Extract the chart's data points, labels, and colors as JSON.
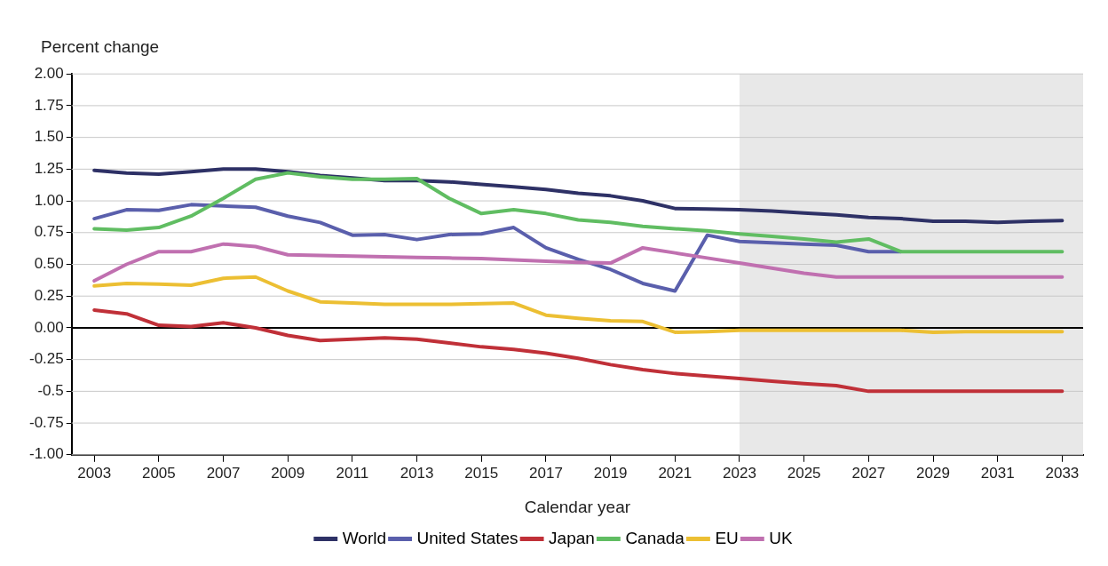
{
  "chart_data": {
    "type": "line",
    "ylabel": "Percent change",
    "xlabel": "Calendar year",
    "x": [
      2003,
      2004,
      2005,
      2006,
      2007,
      2008,
      2009,
      2010,
      2011,
      2012,
      2013,
      2014,
      2015,
      2016,
      2017,
      2018,
      2019,
      2020,
      2021,
      2022,
      2023,
      2024,
      2025,
      2026,
      2027,
      2028,
      2029,
      2030,
      2031,
      2032,
      2033
    ],
    "series": [
      {
        "name": "World",
        "color": "#2e3166",
        "values": [
          1.24,
          1.22,
          1.21,
          1.23,
          1.25,
          1.25,
          1.23,
          1.2,
          1.18,
          1.16,
          1.16,
          1.15,
          1.13,
          1.11,
          1.09,
          1.06,
          1.04,
          1.0,
          0.94,
          0.935,
          0.93,
          0.92,
          0.905,
          0.89,
          0.87,
          0.86,
          0.84,
          0.84,
          0.83,
          0.84,
          0.845
        ]
      },
      {
        "name": "United States",
        "color": "#5a5fac",
        "values": [
          0.86,
          0.93,
          0.925,
          0.97,
          0.96,
          0.95,
          0.88,
          0.83,
          0.73,
          0.735,
          0.695,
          0.735,
          0.74,
          0.79,
          0.63,
          0.54,
          0.46,
          0.35,
          0.29,
          0.73,
          0.68,
          0.67,
          0.66,
          0.65,
          0.6,
          0.6,
          null,
          null,
          null,
          null,
          null
        ]
      },
      {
        "name": "Japan",
        "color": "#c03038",
        "values": [
          0.14,
          0.11,
          0.02,
          0.01,
          0.04,
          0.0,
          -0.06,
          -0.1,
          -0.09,
          -0.08,
          -0.09,
          -0.12,
          -0.15,
          -0.17,
          -0.2,
          -0.24,
          -0.29,
          -0.33,
          -0.36,
          -0.38,
          -0.4,
          -0.42,
          -0.44,
          -0.455,
          -0.5,
          -0.5,
          -0.5,
          -0.5,
          -0.5,
          -0.5,
          -0.5
        ]
      },
      {
        "name": "Canada",
        "color": "#60bd62",
        "values": [
          0.78,
          0.77,
          0.79,
          0.88,
          1.02,
          1.17,
          1.22,
          1.19,
          1.17,
          1.17,
          1.175,
          1.02,
          0.9,
          0.93,
          0.9,
          0.85,
          0.83,
          0.8,
          0.78,
          0.765,
          0.74,
          0.72,
          0.7,
          0.675,
          0.7,
          0.6,
          0.6,
          0.6,
          0.6,
          0.6,
          0.6
        ]
      },
      {
        "name": "EU",
        "color": "#ecbf33",
        "values": [
          0.33,
          0.35,
          0.345,
          0.335,
          0.39,
          0.4,
          0.29,
          0.205,
          0.195,
          0.185,
          0.185,
          0.185,
          0.19,
          0.195,
          0.1,
          0.075,
          0.055,
          0.05,
          -0.035,
          -0.03,
          -0.02,
          -0.02,
          -0.02,
          -0.02,
          -0.02,
          -0.02,
          -0.035,
          -0.03,
          -0.03,
          -0.03,
          -0.03
        ]
      },
      {
        "name": "UK",
        "color": "#c070b0",
        "values": [
          0.37,
          0.5,
          0.6,
          0.6,
          0.66,
          0.64,
          0.575,
          0.57,
          0.565,
          0.56,
          0.555,
          0.55,
          0.545,
          0.535,
          0.525,
          0.515,
          0.51,
          0.63,
          0.59,
          0.55,
          0.51,
          0.47,
          0.43,
          0.4,
          0.4,
          0.4,
          0.4,
          0.4,
          0.4,
          0.4,
          0.4
        ]
      }
    ],
    "xlim": [
      2002.3,
      2033.65
    ],
    "xticks": [
      2003,
      2005,
      2007,
      2009,
      2011,
      2013,
      2015,
      2017,
      2019,
      2021,
      2023,
      2025,
      2027,
      2029,
      2031,
      2033
    ],
    "ylim": [
      -1,
      2
    ],
    "yticks": [
      {
        "value": 2,
        "label": "2.00"
      },
      {
        "value": 1.75,
        "label": "1.75"
      },
      {
        "value": 1.5,
        "label": "1.50"
      },
      {
        "value": 1.25,
        "label": "1.25"
      },
      {
        "value": 1,
        "label": "1.00"
      },
      {
        "value": 0.75,
        "label": "0.75"
      },
      {
        "value": 0.5,
        "label": "0.50"
      },
      {
        "value": 0.25,
        "label": "0.25"
      },
      {
        "value": 0,
        "label": "0.00"
      },
      {
        "value": -0.25,
        "label": "-0.25"
      },
      {
        "value": -0.5,
        "label": "-0.5"
      },
      {
        "value": -0.75,
        "label": "-0.75"
      },
      {
        "value": -1,
        "label": "-1.00"
      }
    ],
    "ref_lines": [
      {
        "axis": "y",
        "value": 0,
        "color": "#000000"
      }
    ],
    "bands": [
      {
        "axis": "x",
        "from": 2023,
        "to": 2033.65,
        "color": "#e8e8e8"
      }
    ],
    "grid": "y",
    "legend": "bottom",
    "marker": "none",
    "line_style": "solid"
  }
}
